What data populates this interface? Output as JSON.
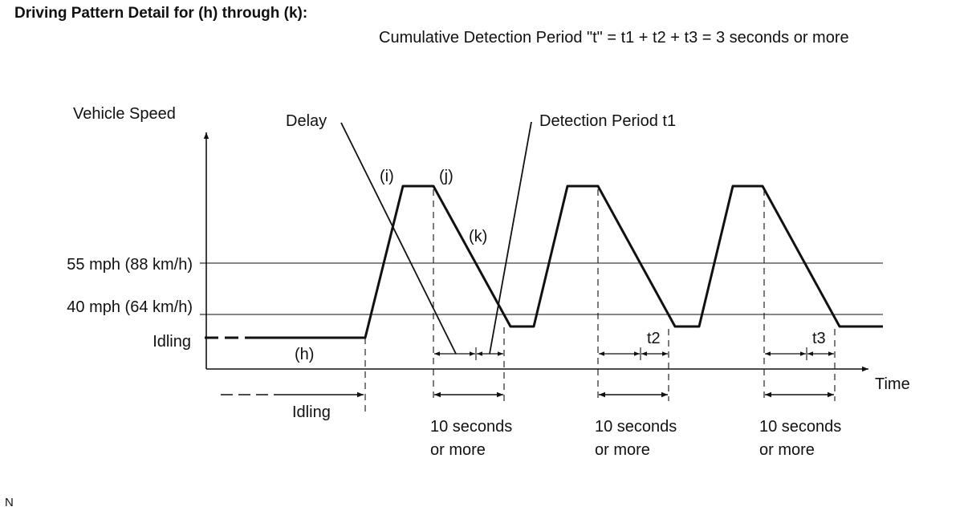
{
  "title": "Driving Pattern Detail for (h) through (k):",
  "formula": "Cumulative Detection Period \"t\" = t1 + t2 + t3 = 3 seconds or more",
  "axes": {
    "y_label": "Vehicle Speed",
    "x_label": "Time"
  },
  "speed_levels": {
    "high": "55 mph (88 km/h)",
    "low": "40 mph (64 km/h)",
    "idle": "Idling"
  },
  "callouts": {
    "delay": "Delay",
    "detection": "Detection Period t1"
  },
  "steps": {
    "h": "(h)",
    "i": "(i)",
    "j": "(j)",
    "k": "(k)"
  },
  "period_labels": {
    "t2": "t2",
    "t3": "t3"
  },
  "idling_label": "Idling",
  "duration_labels": {
    "line1": "10 seconds",
    "line2": "or more"
  },
  "footnote": "N",
  "colors": {
    "line": "#111111",
    "background": "#ffffff"
  }
}
